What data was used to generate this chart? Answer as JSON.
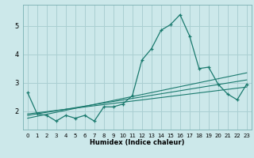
{
  "xlabel": "Humidex (Indice chaleur)",
  "bg_color": "#cce8ea",
  "grid_color": "#aacfd2",
  "line_color": "#1a7a6e",
  "xlim": [
    -0.5,
    23.5
  ],
  "ylim": [
    1.35,
    5.75
  ],
  "yticks": [
    2,
    3,
    4,
    5
  ],
  "xticks": [
    0,
    1,
    2,
    3,
    4,
    5,
    6,
    7,
    8,
    9,
    10,
    11,
    12,
    13,
    14,
    15,
    16,
    17,
    18,
    19,
    20,
    21,
    22,
    23
  ],
  "series1_x": [
    0,
    1,
    2,
    3,
    4,
    5,
    6,
    7,
    8,
    9,
    10,
    11,
    12,
    13,
    14,
    15,
    16,
    17,
    18,
    19,
    20,
    21,
    22,
    23
  ],
  "series1_y": [
    2.65,
    1.9,
    1.85,
    1.65,
    1.85,
    1.75,
    1.85,
    1.65,
    2.15,
    2.15,
    2.25,
    2.55,
    3.8,
    4.2,
    4.85,
    5.05,
    5.4,
    4.65,
    3.5,
    3.55,
    2.95,
    2.6,
    2.4,
    2.95
  ],
  "series2_x": [
    0,
    23
  ],
  "series2_y": [
    1.75,
    3.35
  ],
  "series3_x": [
    0,
    23
  ],
  "series3_y": [
    1.85,
    3.1
  ],
  "series4_x": [
    0,
    23
  ],
  "series4_y": [
    1.9,
    2.85
  ],
  "marker_x": [
    0,
    1,
    2,
    3,
    4,
    5,
    6,
    7,
    8,
    9,
    10,
    11,
    12,
    13,
    14,
    15,
    16,
    17,
    18,
    19,
    20,
    21,
    22,
    23
  ]
}
